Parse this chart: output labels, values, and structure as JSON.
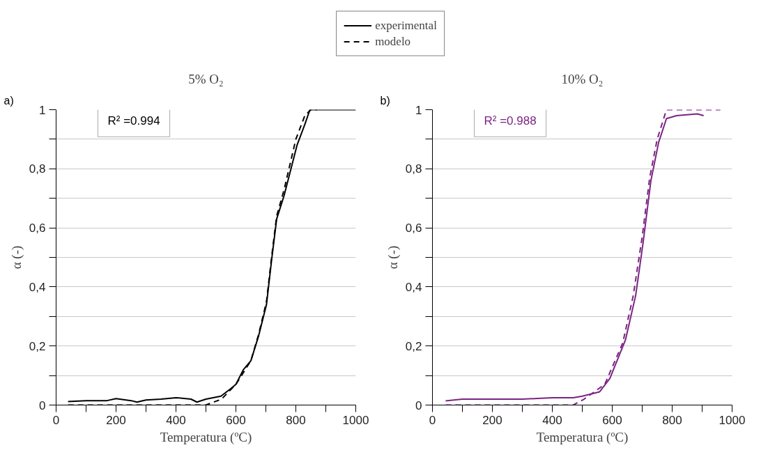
{
  "chart_data": [
    {
      "type": "line",
      "title": "5% O₂",
      "xlabel": "Temperatura (ºC)",
      "ylabel": "α (-)",
      "annotations": [
        "a)",
        "R² =0.994"
      ],
      "legend": "top",
      "grid": "y",
      "xlim": [
        0,
        1000
      ],
      "ylim": [
        0,
        1
      ],
      "xticks": [
        0,
        {
          "value": 100,
          "label": null
        },
        200,
        {
          "value": 300,
          "label": null
        },
        400,
        {
          "value": 500,
          "label": null
        },
        600,
        {
          "value": 700,
          "label": null
        },
        800,
        {
          "value": 900,
          "label": null
        },
        1000
      ],
      "yticks": [
        0,
        {
          "value": 0.1,
          "label": null
        },
        {
          "value": 0.2,
          "label": "0,2"
        },
        {
          "value": 0.3,
          "label": null
        },
        {
          "value": 0.4,
          "label": "0,4"
        },
        {
          "value": 0.5,
          "label": null
        },
        {
          "value": 0.6,
          "label": "0,6"
        },
        {
          "value": 0.7,
          "label": null
        },
        {
          "value": 0.8,
          "label": "0,8"
        },
        {
          "value": 0.9,
          "label": null
        },
        1
      ],
      "series": [
        {
          "name": "experimental",
          "color": "#000000",
          "line_style": "solid",
          "x": [
            40,
            100,
            170,
            200,
            250,
            270,
            300,
            350,
            400,
            450,
            470,
            500,
            550,
            582,
            600,
            625,
            650,
            676,
            702,
            719,
            736,
            761,
            804,
            830,
            847,
            860,
            1000
          ],
          "values": [
            0.012,
            0.015,
            0.015,
            0.022,
            0.015,
            0.01,
            0.017,
            0.02,
            0.025,
            0.02,
            0.01,
            0.02,
            0.03,
            0.055,
            0.07,
            0.12,
            0.15,
            0.235,
            0.34,
            0.49,
            0.63,
            0.71,
            0.88,
            0.95,
            1.0,
            1.0,
            1.0
          ]
        },
        {
          "name": "modelo",
          "color": "#000000",
          "line_style": "dashed",
          "x": [
            40,
            500,
            552,
            600,
            625,
            650,
            676,
            702,
            719,
            736,
            761,
            800,
            830,
            850,
            870
          ],
          "values": [
            0.0,
            0.0,
            0.02,
            0.07,
            0.11,
            0.15,
            0.24,
            0.35,
            0.5,
            0.64,
            0.73,
            0.9,
            0.98,
            1.0,
            1.0
          ]
        }
      ]
    },
    {
      "type": "line",
      "title": "10% O₂",
      "xlabel": "Temperatura (ºC)",
      "ylabel": "α (-)",
      "annotations": [
        "b)",
        "R² =0.988"
      ],
      "grid": "y",
      "xlim": [
        0,
        1000
      ],
      "ylim": [
        0,
        1
      ],
      "xticks": [
        0,
        {
          "value": 100,
          "label": null
        },
        200,
        {
          "value": 300,
          "label": null
        },
        400,
        {
          "value": 500,
          "label": null
        },
        600,
        {
          "value": 700,
          "label": null
        },
        800,
        {
          "value": 900,
          "label": null
        },
        1000
      ],
      "yticks": [
        0,
        {
          "value": 0.1,
          "label": null
        },
        {
          "value": 0.2,
          "label": "0,2"
        },
        {
          "value": 0.3,
          "label": null
        },
        {
          "value": 0.4,
          "label": "0,4"
        },
        {
          "value": 0.5,
          "label": null
        },
        {
          "value": 0.6,
          "label": "0,6"
        },
        {
          "value": 0.7,
          "label": null
        },
        {
          "value": 0.8,
          "label": "0,8"
        },
        {
          "value": 0.9,
          "label": null
        },
        1
      ],
      "series": [
        {
          "color": "#7b2382",
          "line_style": "solid",
          "x": [
            44,
            100,
            200,
            300,
            400,
            470,
            500,
            540,
            558,
            592,
            644,
            678,
            703,
            729,
            755,
            781,
            815,
            884,
            905
          ],
          "values": [
            0.014,
            0.02,
            0.02,
            0.02,
            0.025,
            0.025,
            0.03,
            0.04,
            0.045,
            0.09,
            0.22,
            0.37,
            0.55,
            0.76,
            0.89,
            0.97,
            0.98,
            0.986,
            0.98
          ]
        },
        {
          "color": "#7b2382",
          "line_style": "dashed",
          "x": [
            44,
            470,
            506,
            575,
            635,
            670,
            700,
            725,
            750,
            781,
            800,
            961
          ],
          "values": [
            0.0,
            0.0,
            0.02,
            0.07,
            0.21,
            0.37,
            0.57,
            0.77,
            0.9,
            1.0,
            1.0,
            1.0
          ]
        }
      ]
    }
  ]
}
